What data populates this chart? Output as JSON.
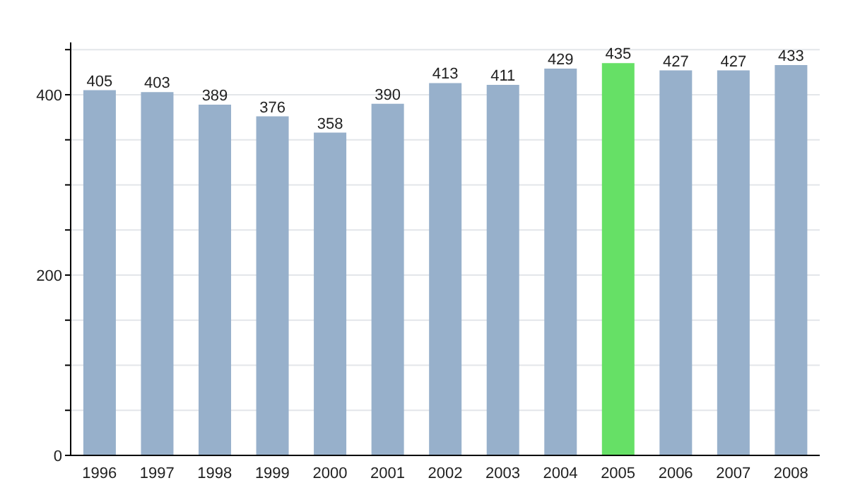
{
  "chart_data": {
    "type": "bar",
    "categories": [
      "1996",
      "1997",
      "1998",
      "1999",
      "2000",
      "2001",
      "2002",
      "2003",
      "2004",
      "2005",
      "2006",
      "2007",
      "2008"
    ],
    "values": [
      405,
      403,
      389,
      376,
      358,
      390,
      413,
      411,
      429,
      435,
      427,
      427,
      433
    ],
    "colors": [
      "#97b0cb",
      "#97b0cb",
      "#97b0cb",
      "#97b0cb",
      "#97b0cb",
      "#97b0cb",
      "#97b0cb",
      "#97b0cb",
      "#97b0cb",
      "#66e066",
      "#97b0cb",
      "#97b0cb",
      "#97b0cb"
    ],
    "ylim": [
      0,
      458
    ],
    "yticks": [
      0,
      {
        "value": 50,
        "label": null
      },
      {
        "value": 100,
        "label": null
      },
      {
        "value": 150,
        "label": null
      },
      200,
      {
        "value": 250,
        "label": null
      },
      {
        "value": 300,
        "label": null
      },
      {
        "value": 350,
        "label": null
      },
      400,
      {
        "value": 450,
        "label": null
      }
    ],
    "grid": "y",
    "data_labels": true
  }
}
